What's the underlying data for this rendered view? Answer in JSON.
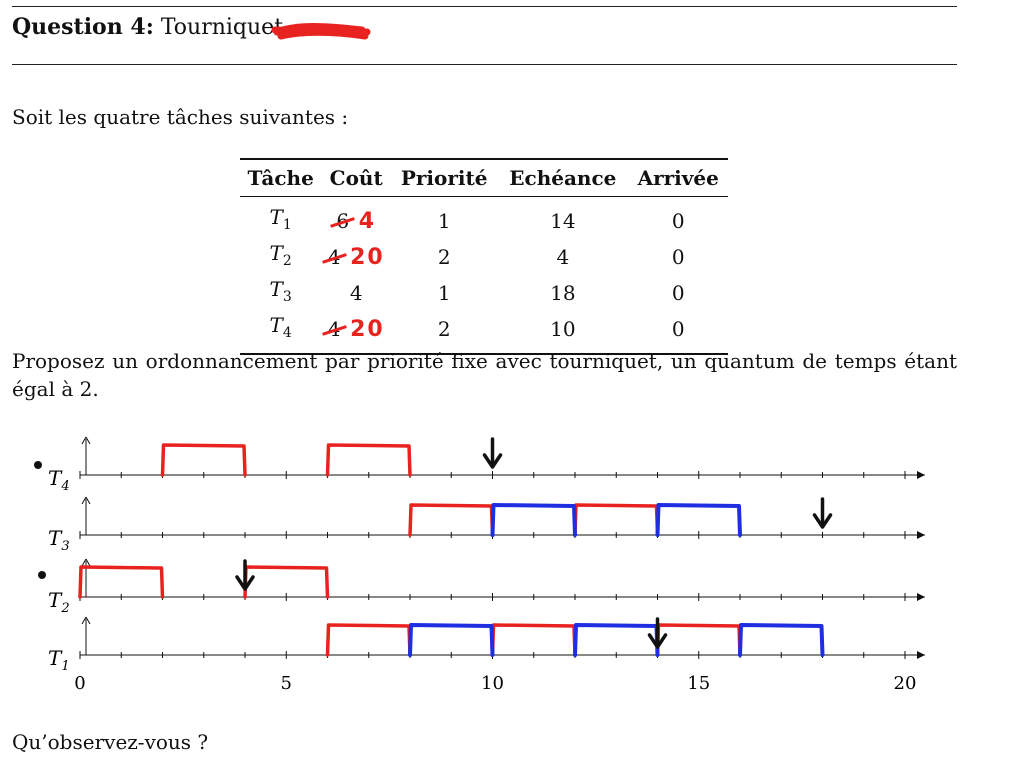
{
  "header": {
    "question_label": "Question 4:",
    "title": "Tourniquet"
  },
  "intro": "Soit les quatre tâches suivantes :",
  "table": {
    "headers": [
      "Tâche",
      "Coût",
      "Priorité",
      "Echéance",
      "Arrivée"
    ],
    "rows": [
      {
        "task": "T",
        "sub": "1",
        "cost": "6",
        "cost_correction": "4",
        "priority": "1",
        "deadline": "14",
        "arrival": "0"
      },
      {
        "task": "T",
        "sub": "2",
        "cost": "4",
        "cost_correction": "20",
        "priority": "2",
        "deadline": "4",
        "arrival": "0"
      },
      {
        "task": "T",
        "sub": "3",
        "cost": "4",
        "cost_correction": "",
        "priority": "1",
        "deadline": "18",
        "arrival": "0"
      },
      {
        "task": "T",
        "sub": "4",
        "cost": "4",
        "cost_correction": "20",
        "priority": "2",
        "deadline": "10",
        "arrival": "0"
      }
    ]
  },
  "prompt": "Proposez un ordonnancement par priorité fixe avec tourniquet, un quantum de temps étant égal à 2.",
  "question": "Qu’observez-vous ?",
  "colors": {
    "annotation_red": "#e8231f",
    "annotation_blue": "#1f2ee0",
    "ink": "#111111"
  },
  "chart_data": {
    "type": "gantt",
    "x_range": [
      0,
      20
    ],
    "x_ticks": [
      0,
      5,
      10,
      15,
      20
    ],
    "rows": [
      {
        "task": "T",
        "sub": "4",
        "red": [
          [
            2,
            4
          ],
          [
            6,
            8
          ]
        ],
        "blue": [],
        "deadline": 10
      },
      {
        "task": "T",
        "sub": "3",
        "red": [
          [
            8,
            10
          ],
          [
            12,
            14
          ]
        ],
        "blue": [
          [
            10,
            12
          ],
          [
            14,
            16
          ]
        ],
        "deadline": 18
      },
      {
        "task": "T",
        "sub": "2",
        "red": [
          [
            0,
            2
          ],
          [
            4,
            6
          ]
        ],
        "blue": [],
        "deadline": 4
      },
      {
        "task": "T",
        "sub": "1",
        "red": [
          [
            6,
            8
          ],
          [
            10,
            12
          ],
          [
            14,
            16
          ]
        ],
        "blue": [
          [
            8,
            10
          ],
          [
            12,
            14
          ],
          [
            16,
            18
          ]
        ],
        "deadline": 14
      }
    ]
  }
}
